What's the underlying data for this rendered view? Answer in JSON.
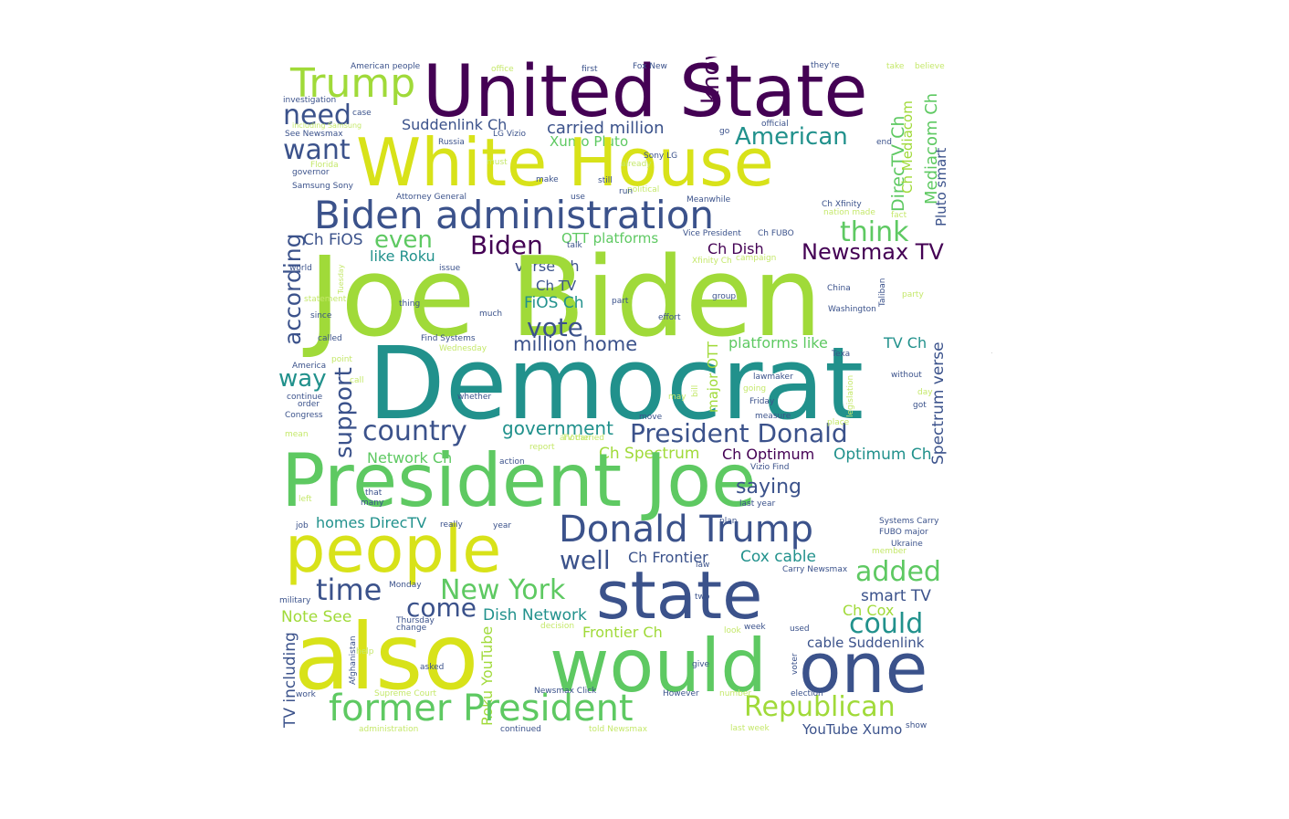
{
  "palette": {
    "purple": "#440154",
    "indigo": "#3b528b",
    "teal": "#21918c",
    "green": "#5ec962",
    "lime": "#a0da39",
    "yellow": "#d8e219",
    "pale": "#c5e86b"
  },
  "words": [
    {
      "t": "Trump",
      "c": "lime"
    },
    {
      "t": "United State",
      "c": "purple"
    },
    {
      "t": "know",
      "c": "purple"
    },
    {
      "t": "need",
      "c": "indigo"
    },
    {
      "t": "Suddenlink Ch",
      "c": "indigo"
    },
    {
      "t": "carried million",
      "c": "indigo"
    },
    {
      "t": "American",
      "c": "teal"
    },
    {
      "t": "Xumo Pluto",
      "c": "green"
    },
    {
      "t": "want",
      "c": "indigo"
    },
    {
      "t": "White House",
      "c": "yellow"
    },
    {
      "t": "DirecTV Ch",
      "c": "green"
    },
    {
      "t": "Ch Mediacom",
      "c": "lime"
    },
    {
      "t": "Mediacom Ch",
      "c": "green"
    },
    {
      "t": "Pluto smart",
      "c": "indigo"
    },
    {
      "t": "Biden administration",
      "c": "indigo"
    },
    {
      "t": "think",
      "c": "green"
    },
    {
      "t": "according",
      "c": "indigo"
    },
    {
      "t": "Ch FiOS",
      "c": "indigo"
    },
    {
      "t": "even",
      "c": "green"
    },
    {
      "t": "Biden",
      "c": "purple"
    },
    {
      "t": "OTT platforms",
      "c": "green"
    },
    {
      "t": "Ch Dish",
      "c": "purple"
    },
    {
      "t": "Newsmax TV",
      "c": "purple"
    },
    {
      "t": "like Roku",
      "c": "teal"
    },
    {
      "t": "verse Ch",
      "c": "indigo"
    },
    {
      "t": "Joe Biden",
      "c": "lime"
    },
    {
      "t": "Ch TV",
      "c": "indigo"
    },
    {
      "t": "FiOS Ch",
      "c": "teal"
    },
    {
      "t": "vote",
      "c": "indigo"
    },
    {
      "t": "million home",
      "c": "indigo"
    },
    {
      "t": "platforms like",
      "c": "green"
    },
    {
      "t": "TV Ch",
      "c": "teal"
    },
    {
      "t": "support",
      "c": "indigo"
    },
    {
      "t": "way",
      "c": "teal"
    },
    {
      "t": "Democrat",
      "c": "teal"
    },
    {
      "t": "major OTT",
      "c": "lime"
    },
    {
      "t": "Spectrum verse",
      "c": "indigo"
    },
    {
      "t": "country",
      "c": "indigo"
    },
    {
      "t": "government",
      "c": "teal"
    },
    {
      "t": "President Donald",
      "c": "indigo"
    },
    {
      "t": "Network Ch",
      "c": "green"
    },
    {
      "t": "Ch Spectrum",
      "c": "lime"
    },
    {
      "t": "Ch Optimum",
      "c": "purple"
    },
    {
      "t": "Optimum Ch",
      "c": "teal"
    },
    {
      "t": "President Joe",
      "c": "green"
    },
    {
      "t": "saying",
      "c": "indigo"
    },
    {
      "t": "homes DirecTV",
      "c": "teal"
    },
    {
      "t": "people",
      "c": "yellow"
    },
    {
      "t": "Donald Trump",
      "c": "indigo"
    },
    {
      "t": "well",
      "c": "indigo"
    },
    {
      "t": "Ch Frontier",
      "c": "indigo"
    },
    {
      "t": "Cox cable",
      "c": "teal"
    },
    {
      "t": "added",
      "c": "green"
    },
    {
      "t": "time",
      "c": "indigo"
    },
    {
      "t": "New York",
      "c": "green"
    },
    {
      "t": "state",
      "c": "indigo"
    },
    {
      "t": "smart TV",
      "c": "indigo"
    },
    {
      "t": "Ch Cox",
      "c": "lime"
    },
    {
      "t": "come",
      "c": "indigo"
    },
    {
      "t": "Dish Network",
      "c": "teal"
    },
    {
      "t": "Note See",
      "c": "lime"
    },
    {
      "t": "Frontier Ch",
      "c": "lime"
    },
    {
      "t": "could",
      "c": "teal"
    },
    {
      "t": "cable Suddenlink",
      "c": "indigo"
    },
    {
      "t": "also",
      "c": "yellow"
    },
    {
      "t": "would",
      "c": "green"
    },
    {
      "t": "one",
      "c": "indigo"
    },
    {
      "t": "TV including",
      "c": "indigo"
    },
    {
      "t": "Roku YouTube",
      "c": "lime"
    },
    {
      "t": "former President",
      "c": "green"
    },
    {
      "t": "Republican",
      "c": "lime"
    },
    {
      "t": "YouTube Xumo",
      "c": "indigo"
    },
    {
      "t": "American people",
      "c": "indigo"
    },
    {
      "t": "office",
      "c": "pale"
    },
    {
      "t": "first",
      "c": "indigo"
    },
    {
      "t": "Fox New",
      "c": "indigo"
    },
    {
      "t": "they're",
      "c": "indigo"
    },
    {
      "t": "take",
      "c": "pale"
    },
    {
      "t": "believe",
      "c": "pale"
    },
    {
      "t": "investigation",
      "c": "indigo"
    },
    {
      "t": "case",
      "c": "indigo"
    },
    {
      "t": "including Samsung",
      "c": "pale"
    },
    {
      "t": "See Newsmax",
      "c": "indigo"
    },
    {
      "t": "LG Vizio",
      "c": "indigo"
    },
    {
      "t": "official",
      "c": "indigo"
    },
    {
      "t": "go",
      "c": "indigo"
    },
    {
      "t": "end",
      "c": "indigo"
    },
    {
      "t": "Russia",
      "c": "indigo"
    },
    {
      "t": "Sony LG",
      "c": "indigo"
    },
    {
      "t": "Florida",
      "c": "pale"
    },
    {
      "t": "must",
      "c": "pale"
    },
    {
      "t": "already",
      "c": "pale"
    },
    {
      "t": "governor",
      "c": "indigo"
    },
    {
      "t": "make",
      "c": "indigo"
    },
    {
      "t": "still",
      "c": "indigo"
    },
    {
      "t": "Samsung Sony",
      "c": "indigo"
    },
    {
      "t": "political",
      "c": "pale"
    },
    {
      "t": "run",
      "c": "indigo"
    },
    {
      "t": "Attorney General",
      "c": "indigo"
    },
    {
      "t": "use",
      "c": "indigo"
    },
    {
      "t": "Meanwhile",
      "c": "indigo"
    },
    {
      "t": "Ch Xfinity",
      "c": "indigo"
    },
    {
      "t": "nation made",
      "c": "pale"
    },
    {
      "t": "fact",
      "c": "pale"
    },
    {
      "t": "Vice President",
      "c": "indigo"
    },
    {
      "t": "Ch FUBO",
      "c": "indigo"
    },
    {
      "t": "talk",
      "c": "indigo"
    },
    {
      "t": "Xfinity Ch",
      "c": "pale"
    },
    {
      "t": "campaign",
      "c": "pale"
    },
    {
      "t": "issue",
      "c": "indigo"
    },
    {
      "t": "world",
      "c": "indigo"
    },
    {
      "t": "Tuesday",
      "c": "pale"
    },
    {
      "t": "statement",
      "c": "pale"
    },
    {
      "t": "thing",
      "c": "indigo"
    },
    {
      "t": "much",
      "c": "indigo"
    },
    {
      "t": "part",
      "c": "indigo"
    },
    {
      "t": "group",
      "c": "indigo"
    },
    {
      "t": "China",
      "c": "indigo"
    },
    {
      "t": "Taliban",
      "c": "indigo"
    },
    {
      "t": "party",
      "c": "pale"
    },
    {
      "t": "since",
      "c": "indigo"
    },
    {
      "t": "effort",
      "c": "indigo"
    },
    {
      "t": "Washington",
      "c": "indigo"
    },
    {
      "t": "called",
      "c": "indigo"
    },
    {
      "t": "Find Systems",
      "c": "indigo"
    },
    {
      "t": "Wednesday",
      "c": "pale"
    },
    {
      "t": "point",
      "c": "pale"
    },
    {
      "t": "Texa",
      "c": "indigo"
    },
    {
      "t": "America",
      "c": "indigo"
    },
    {
      "t": "call",
      "c": "pale"
    },
    {
      "t": "lawmaker",
      "c": "indigo"
    },
    {
      "t": "without",
      "c": "indigo"
    },
    {
      "t": "continue",
      "c": "indigo"
    },
    {
      "t": "order",
      "c": "indigo"
    },
    {
      "t": "whether",
      "c": "indigo"
    },
    {
      "t": "going",
      "c": "pale"
    },
    {
      "t": "may",
      "c": "pale"
    },
    {
      "t": "bill",
      "c": "pale"
    },
    {
      "t": "day",
      "c": "pale"
    },
    {
      "t": "Friday",
      "c": "indigo"
    },
    {
      "t": "measure",
      "c": "indigo"
    },
    {
      "t": "got",
      "c": "indigo"
    },
    {
      "t": "Congress",
      "c": "indigo"
    },
    {
      "t": "move",
      "c": "indigo"
    },
    {
      "t": "place",
      "c": "pale"
    },
    {
      "t": "legislation",
      "c": "pale"
    },
    {
      "t": "TV carried",
      "c": "pale"
    },
    {
      "t": "mean",
      "c": "pale"
    },
    {
      "t": "another",
      "c": "pale"
    },
    {
      "t": "report",
      "c": "pale"
    },
    {
      "t": "action",
      "c": "indigo"
    },
    {
      "t": "Vizio Find",
      "c": "indigo"
    },
    {
      "t": "that",
      "c": "indigo"
    },
    {
      "t": "left",
      "c": "pale"
    },
    {
      "t": "many",
      "c": "indigo"
    },
    {
      "t": "last year",
      "c": "indigo"
    },
    {
      "t": "job",
      "c": "indigo"
    },
    {
      "t": "really",
      "c": "indigo"
    },
    {
      "t": "year",
      "c": "indigo"
    },
    {
      "t": "plan",
      "c": "indigo"
    },
    {
      "t": "Systems Carry",
      "c": "indigo"
    },
    {
      "t": "FUBO major",
      "c": "indigo"
    },
    {
      "t": "Ukraine",
      "c": "indigo"
    },
    {
      "t": "member",
      "c": "pale"
    },
    {
      "t": "law",
      "c": "indigo"
    },
    {
      "t": "Carry Newsmax",
      "c": "indigo"
    },
    {
      "t": "Monday",
      "c": "indigo"
    },
    {
      "t": "military",
      "c": "indigo"
    },
    {
      "t": "two",
      "c": "indigo"
    },
    {
      "t": "Thursday",
      "c": "indigo"
    },
    {
      "t": "change",
      "c": "indigo"
    },
    {
      "t": "decision",
      "c": "pale"
    },
    {
      "t": "week",
      "c": "indigo"
    },
    {
      "t": "used",
      "c": "indigo"
    },
    {
      "t": "look",
      "c": "pale"
    },
    {
      "t": "help",
      "c": "pale"
    },
    {
      "t": "Afghanistan",
      "c": "indigo"
    },
    {
      "t": "asked",
      "c": "indigo"
    },
    {
      "t": "give",
      "c": "indigo"
    },
    {
      "t": "voter",
      "c": "indigo"
    },
    {
      "t": "work",
      "c": "indigo"
    },
    {
      "t": "Supreme Court",
      "c": "pale"
    },
    {
      "t": "Newsmax Click",
      "c": "indigo"
    },
    {
      "t": "However",
      "c": "indigo"
    },
    {
      "t": "number",
      "c": "pale"
    },
    {
      "t": "election",
      "c": "indigo"
    },
    {
      "t": "administration",
      "c": "pale"
    },
    {
      "t": "continued",
      "c": "indigo"
    },
    {
      "t": "told Newsmax",
      "c": "pale"
    },
    {
      "t": "last week",
      "c": "pale"
    },
    {
      "t": "show",
      "c": "indigo"
    }
  ]
}
